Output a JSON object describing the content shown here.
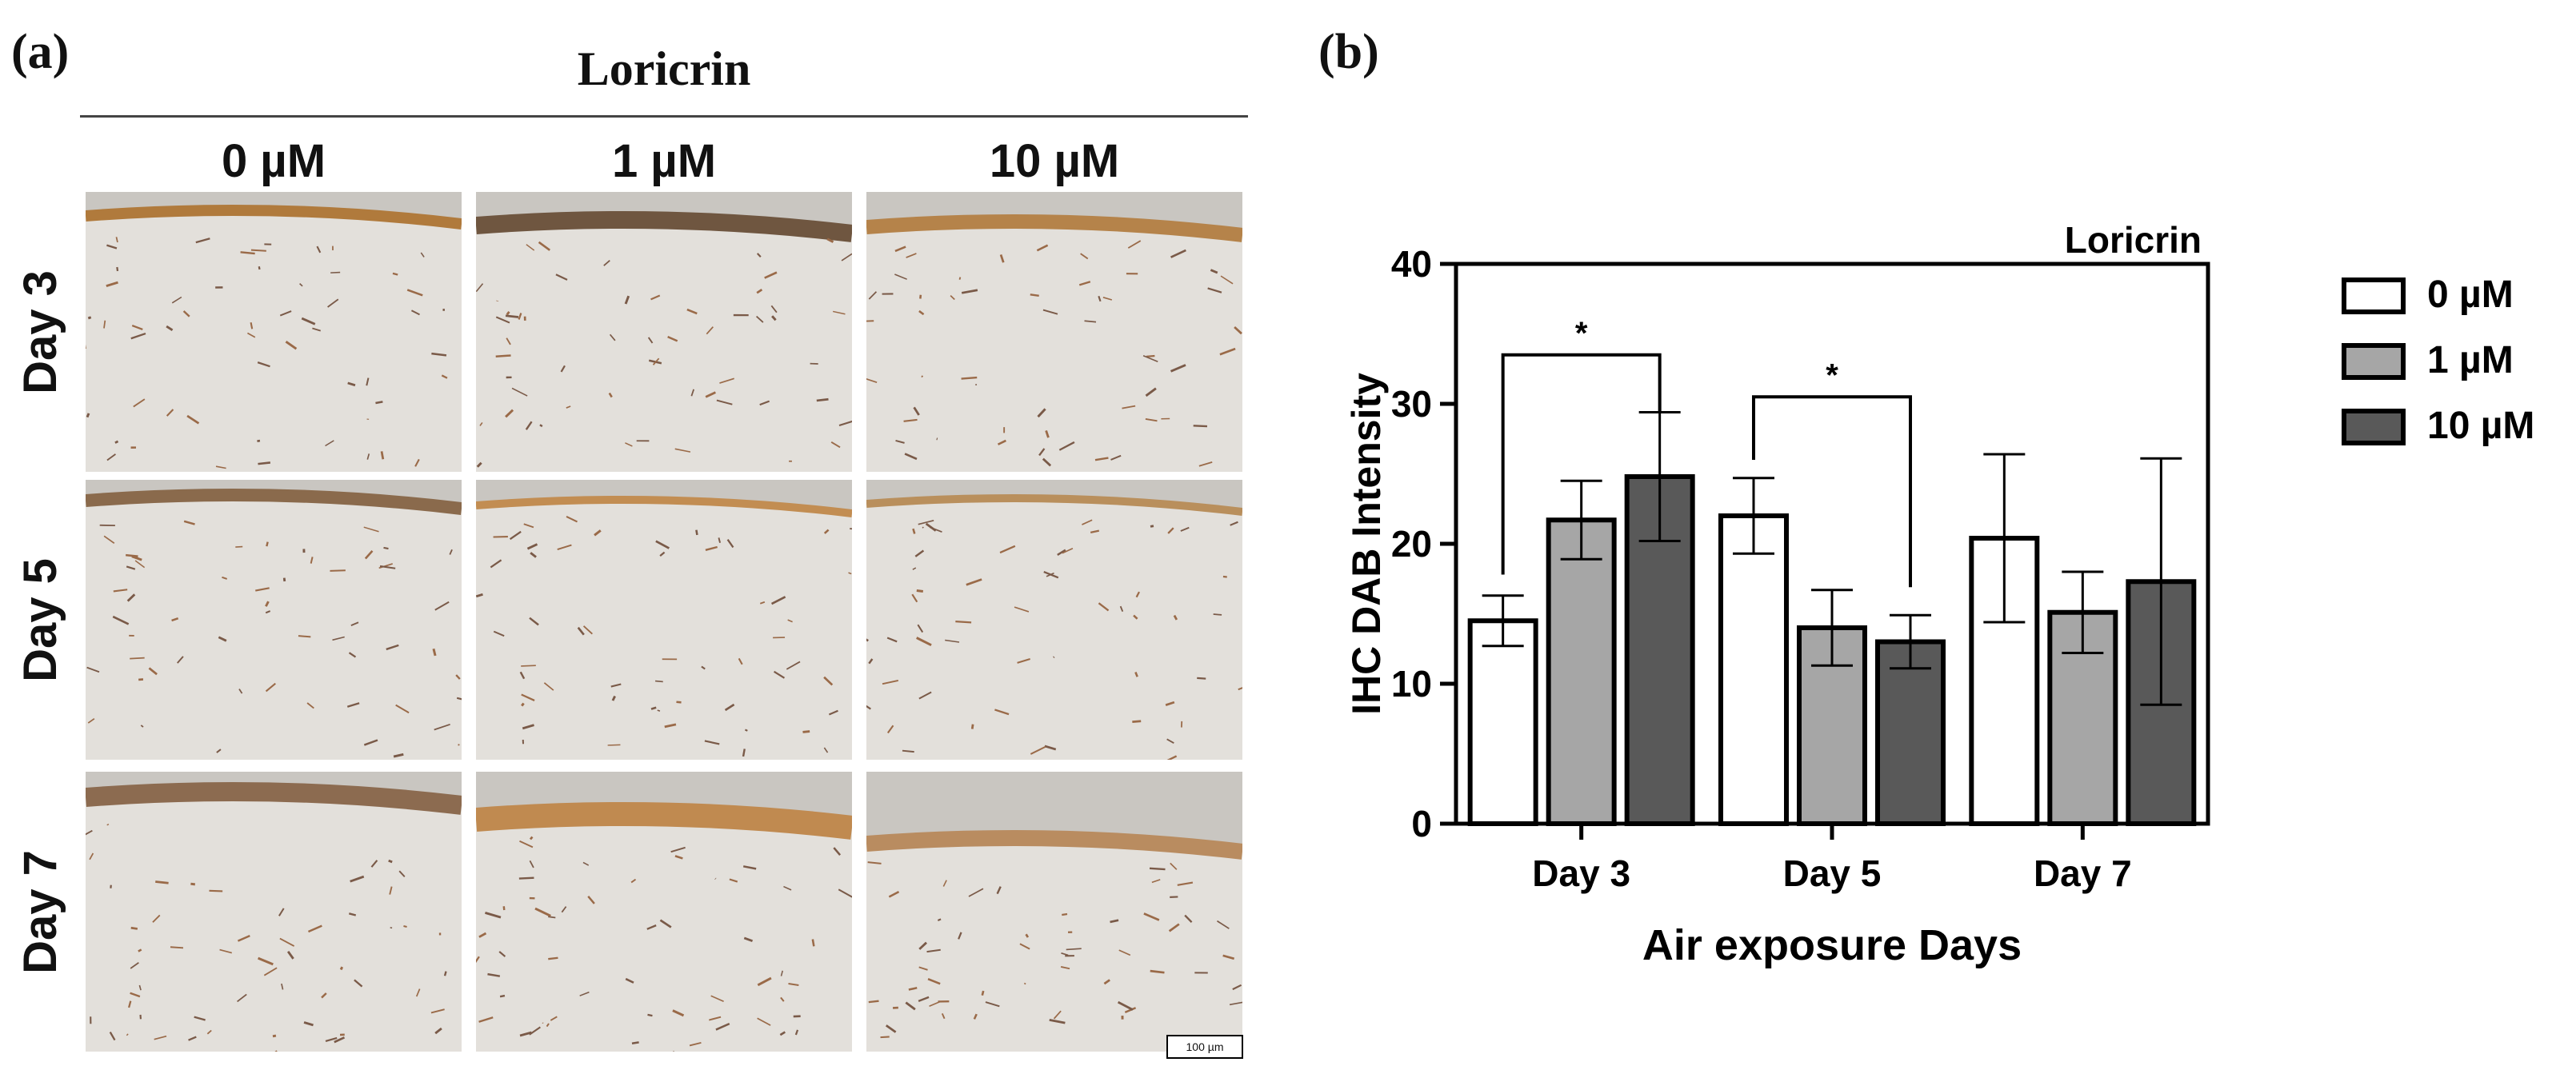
{
  "panel_a": {
    "label": "(a)",
    "title": "Loricrin",
    "columns": [
      "0 µM",
      "1 µM",
      "10 µM"
    ],
    "rows": [
      "Day 3",
      "Day 5",
      "Day 7"
    ],
    "scale_bar": "100 µm"
  },
  "panel_b": {
    "label": "(b)"
  },
  "chart_data": {
    "type": "bar",
    "title": "Loricrin",
    "xlabel": "Air exposure Days",
    "ylabel": "IHC DAB Intensity",
    "categories": [
      "Day 3",
      "Day 5",
      "Day 7"
    ],
    "ylim": [
      0,
      40
    ],
    "yticks": [
      0,
      10,
      20,
      30,
      40
    ],
    "legend_position": "right",
    "series": [
      {
        "name": "0 µM",
        "color": "#ffffff",
        "values": [
          14.5,
          22.0,
          20.4
        ],
        "errors": [
          1.8,
          2.7,
          6.0
        ]
      },
      {
        "name": "1 µM",
        "color": "#a6a6a6",
        "values": [
          21.7,
          14.0,
          15.1
        ],
        "errors": [
          2.8,
          2.7,
          2.9
        ]
      },
      {
        "name": "10 µM",
        "color": "#595959",
        "values": [
          24.8,
          13.0,
          17.3
        ],
        "errors": [
          4.6,
          1.9,
          8.8
        ]
      }
    ],
    "significance": [
      {
        "category": "Day 3",
        "from_series": 0,
        "to_series": 2,
        "label": "*"
      },
      {
        "category": "Day 5",
        "from_series": 0,
        "to_series": 2,
        "label": "*"
      }
    ]
  }
}
